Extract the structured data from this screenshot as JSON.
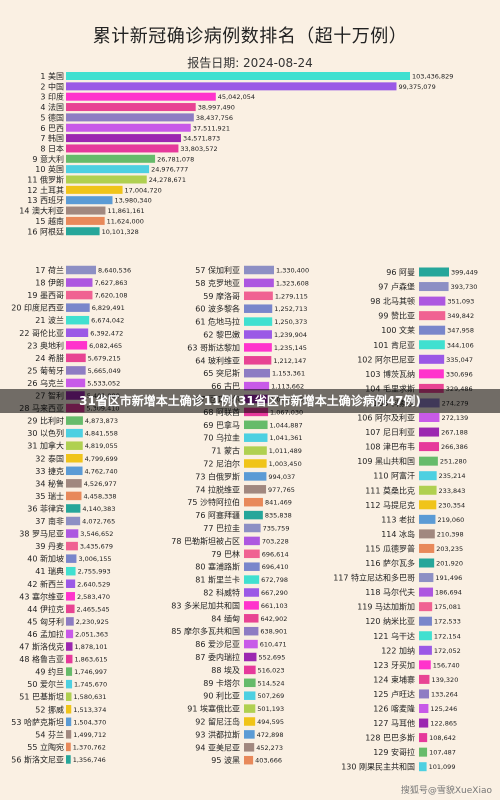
{
  "report_date_line": "报告日期:   2024-08-24",
  "overlay_banner": "31省区市新增本土确诊11例(31省区市新增本土确诊病例47例)",
  "watermark": "搜狐号@雪貌XueXiao",
  "chart_data": {
    "type": "bar",
    "title": "累计新冠确诊病例数排名（超十万例）",
    "orientation": "horizontal",
    "colors": [
      "#40e0d0",
      "#9b59e6",
      "#ff33cc",
      "#e84393",
      "#8e7cc3",
      "#c85ae8",
      "#9c27b0",
      "#e6399b",
      "#66bb6a",
      "#4dd0e1",
      "#b0d050",
      "#f0c419",
      "#5b9bd5",
      "#a1887f",
      "#e8895a",
      "#26a69a",
      "#8d8fc4",
      "#ad57e0",
      "#f06292",
      "#7986cb"
    ],
    "groups": [
      {
        "name": "top",
        "items": [
          {
            "rank": "1",
            "name": "美国",
            "value": 103436829,
            "label": "103,436,829"
          },
          {
            "rank": "2",
            "name": "中国",
            "value": 99375079,
            "label": "99,375,079"
          },
          {
            "rank": "3",
            "name": "印度",
            "value": 45042054,
            "label": "45,042,054"
          },
          {
            "rank": "4",
            "name": "法国",
            "value": 38997490,
            "label": "38,997,490"
          },
          {
            "rank": "5",
            "name": "德国",
            "value": 38437756,
            "label": "38,437,756"
          },
          {
            "rank": "6",
            "name": "巴西",
            "value": 37511921,
            "label": "37,511,921"
          },
          {
            "rank": "7",
            "name": "韩国",
            "value": 34571873,
            "label": "34,571,873"
          },
          {
            "rank": "8",
            "name": "日本",
            "value": 33803572,
            "label": "33,803,572"
          },
          {
            "rank": "9",
            "name": "意大利",
            "value": 26781078,
            "label": "26,781,078"
          },
          {
            "rank": "10",
            "name": "英国",
            "value": 24976777,
            "label": "24,976,777"
          },
          {
            "rank": "11",
            "name": "俄罗斯",
            "value": 24278671,
            "label": "24,278,671"
          },
          {
            "rank": "12",
            "name": "土耳其",
            "value": 17004720,
            "label": "17,004,720"
          },
          {
            "rank": "13",
            "name": "西班牙",
            "value": 13980340,
            "label": "13,980,340"
          },
          {
            "rank": "14",
            "name": "澳大利亚",
            "value": 11861161,
            "label": "11,861,161"
          },
          {
            "rank": "15",
            "name": "越南",
            "value": 11624000,
            "label": "11,624,000"
          },
          {
            "rank": "16",
            "name": "阿根廷",
            "value": 10101328,
            "label": "10,101,328"
          }
        ]
      },
      {
        "name": "col1",
        "items": [
          {
            "rank": "17",
            "name": "荷兰",
            "value": 8640536,
            "label": "8,640,536"
          },
          {
            "rank": "18",
            "name": "伊朗",
            "value": 7627863,
            "label": "7,627,863"
          },
          {
            "rank": "19",
            "name": "墨西哥",
            "value": 7620108,
            "label": "7,620,108"
          },
          {
            "rank": "20",
            "name": "印度尼西亚",
            "value": 6829491,
            "label": "6,829,491"
          },
          {
            "rank": "21",
            "name": "波兰",
            "value": 6674042,
            "label": "6,674,042"
          },
          {
            "rank": "22",
            "name": "哥伦比亚",
            "value": 6392472,
            "label": "6,392,472"
          },
          {
            "rank": "23",
            "name": "奥地利",
            "value": 6082465,
            "label": "6,082,465"
          },
          {
            "rank": "24",
            "name": "希腊",
            "value": 5679215,
            "label": "5,679,215"
          },
          {
            "rank": "25",
            "name": "葡萄牙",
            "value": 5665049,
            "label": "5,665,049"
          },
          {
            "rank": "26",
            "name": "乌克兰",
            "value": 5533052,
            "label": "5,533,052"
          },
          {
            "rank": "27",
            "name": "智利",
            "value": 5401080,
            "label": "5,401,080"
          },
          {
            "rank": "28",
            "name": "马来西亚",
            "value": 5309410,
            "label": "5,309,410"
          },
          {
            "rank": "29",
            "name": "比利时",
            "value": 4873873,
            "label": "4,873,873"
          },
          {
            "rank": "30",
            "name": "以色列",
            "value": 4841558,
            "label": "4,841,558"
          },
          {
            "rank": "31",
            "name": "加拿大",
            "value": 4819055,
            "label": "4,819,055"
          },
          {
            "rank": "32",
            "name": "泰国",
            "value": 4799699,
            "label": "4,799,699"
          },
          {
            "rank": "33",
            "name": "捷克",
            "value": 4762740,
            "label": "4,762,740"
          },
          {
            "rank": "34",
            "name": "秘鲁",
            "value": 4526977,
            "label": "4,526,977"
          },
          {
            "rank": "35",
            "name": "瑞士",
            "value": 4458338,
            "label": "4,458,338"
          },
          {
            "rank": "36",
            "name": "菲律宾",
            "value": 4140383,
            "label": "4,140,383"
          },
          {
            "rank": "37",
            "name": "南非",
            "value": 4072765,
            "label": "4,072,765"
          },
          {
            "rank": "38",
            "name": "罗马尼亚",
            "value": 3546652,
            "label": "3,546,652"
          },
          {
            "rank": "39",
            "name": "丹麦",
            "value": 3435679,
            "label": "3,435,679"
          },
          {
            "rank": "40",
            "name": "新加坡",
            "value": 3006155,
            "label": "3,006,155"
          },
          {
            "rank": "41",
            "name": "瑞典",
            "value": 2755993,
            "label": "2,755,993"
          },
          {
            "rank": "42",
            "name": "新西兰",
            "value": 2640529,
            "label": "2,640,529"
          },
          {
            "rank": "43",
            "name": "塞尔维亚",
            "value": 2583470,
            "label": "2,583,470"
          },
          {
            "rank": "44",
            "name": "伊拉克",
            "value": 2465545,
            "label": "2,465,545"
          },
          {
            "rank": "45",
            "name": "匈牙利",
            "value": 2230925,
            "label": "2,230,925"
          },
          {
            "rank": "46",
            "name": "孟加拉",
            "value": 2051363,
            "label": "2,051,363"
          },
          {
            "rank": "47",
            "name": "斯洛伐克",
            "value": 1878101,
            "label": "1,878,101"
          },
          {
            "rank": "48",
            "name": "格鲁吉亚",
            "value": 1863615,
            "label": "1,863,615"
          },
          {
            "rank": "49",
            "name": "约旦",
            "value": 1746997,
            "label": "1,746,997"
          },
          {
            "rank": "50",
            "name": "爱尔兰",
            "value": 1745670,
            "label": "1,745,670"
          },
          {
            "rank": "51",
            "name": "巴基斯坦",
            "value": 1580631,
            "label": "1,580,631"
          },
          {
            "rank": "52",
            "name": "挪威",
            "value": 1513374,
            "label": "1,513,374"
          },
          {
            "rank": "53",
            "name": "哈萨克斯坦",
            "value": 1504370,
            "label": "1,504,370"
          },
          {
            "rank": "54",
            "name": "芬兰",
            "value": 1499712,
            "label": "1,499,712"
          },
          {
            "rank": "55",
            "name": "立陶宛",
            "value": 1370762,
            "label": "1,370,762"
          },
          {
            "rank": "56",
            "name": "斯洛文尼亚",
            "value": 1356746,
            "label": "1,356,746"
          }
        ]
      },
      {
        "name": "col2",
        "items": [
          {
            "rank": "57",
            "name": "保加利亚",
            "value": 1330400,
            "label": "1,330,400"
          },
          {
            "rank": "58",
            "name": "克罗地亚",
            "value": 1323608,
            "label": "1,323,608"
          },
          {
            "rank": "59",
            "name": "摩洛哥",
            "value": 1279115,
            "label": "1,279,115"
          },
          {
            "rank": "60",
            "name": "波多黎各",
            "value": 1252713,
            "label": "1,252,713"
          },
          {
            "rank": "61",
            "name": "危地马拉",
            "value": 1250373,
            "label": "1,250,373"
          },
          {
            "rank": "62",
            "name": "黎巴嫩",
            "value": 1239904,
            "label": "1,239,904"
          },
          {
            "rank": "63",
            "name": "哥斯达黎加",
            "value": 1235145,
            "label": "1,235,145"
          },
          {
            "rank": "64",
            "name": "玻利维亚",
            "value": 1212147,
            "label": "1,212,147"
          },
          {
            "rank": "65",
            "name": "突尼斯",
            "value": 1153361,
            "label": "1,153,361"
          },
          {
            "rank": "66",
            "name": "古巴",
            "value": 1113662,
            "label": "1,113,662"
          },
          {
            "rank": "67",
            "name": "厄瓜多尔",
            "value": 1077346,
            "label": "1,077,346"
          },
          {
            "rank": "68",
            "name": "阿联酋",
            "value": 1067030,
            "label": "1,067,030"
          },
          {
            "rank": "69",
            "name": "巴拿马",
            "value": 1044887,
            "label": "1,044,887"
          },
          {
            "rank": "70",
            "name": "乌拉圭",
            "value": 1041361,
            "label": "1,041,361"
          },
          {
            "rank": "71",
            "name": "蒙古",
            "value": 1011489,
            "label": "1,011,489"
          },
          {
            "rank": "72",
            "name": "尼泊尔",
            "value": 1003450,
            "label": "1,003,450"
          },
          {
            "rank": "73",
            "name": "白俄罗斯",
            "value": 994037,
            "label": "994,037"
          },
          {
            "rank": "74",
            "name": "拉脱维亚",
            "value": 977765,
            "label": "977,765"
          },
          {
            "rank": "75",
            "name": "沙特阿拉伯",
            "value": 841469,
            "label": "841,469"
          },
          {
            "rank": "76",
            "name": "阿塞拜疆",
            "value": 835838,
            "label": "835,838"
          },
          {
            "rank": "77",
            "name": "巴拉圭",
            "value": 735759,
            "label": "735,759"
          },
          {
            "rank": "78",
            "name": "巴勒斯坦被占区",
            "value": 703228,
            "label": "703,228"
          },
          {
            "rank": "79",
            "name": "巴林",
            "value": 696614,
            "label": "696,614"
          },
          {
            "rank": "80",
            "name": "塞浦路斯",
            "value": 696410,
            "label": "696,410"
          },
          {
            "rank": "81",
            "name": "斯里兰卡",
            "value": 672798,
            "label": "672,798"
          },
          {
            "rank": "82",
            "name": "科威特",
            "value": 667290,
            "label": "667,290"
          },
          {
            "rank": "83",
            "name": "多米尼加共和国",
            "value": 661103,
            "label": "661,103"
          },
          {
            "rank": "84",
            "name": "缅甸",
            "value": 642902,
            "label": "642,902"
          },
          {
            "rank": "85",
            "name": "摩尔多瓦共和国",
            "value": 638901,
            "label": "638,901"
          },
          {
            "rank": "86",
            "name": "爱沙尼亚",
            "value": 610471,
            "label": "610,471"
          },
          {
            "rank": "87",
            "name": "委内瑞拉",
            "value": 552695,
            "label": "552,695"
          },
          {
            "rank": "88",
            "name": "埃及",
            "value": 516023,
            "label": "516,023"
          },
          {
            "rank": "89",
            "name": "卡塔尔",
            "value": 514524,
            "label": "514,524"
          },
          {
            "rank": "90",
            "name": "利比亚",
            "value": 507269,
            "label": "507,269"
          },
          {
            "rank": "91",
            "name": "埃塞俄比亚",
            "value": 501193,
            "label": "501,193"
          },
          {
            "rank": "92",
            "name": "留尼汪岛",
            "value": 494595,
            "label": "494,595"
          },
          {
            "rank": "93",
            "name": "洪都拉斯",
            "value": 472898,
            "label": "472,898"
          },
          {
            "rank": "94",
            "name": "亚美尼亚",
            "value": 452273,
            "label": "452,273"
          },
          {
            "rank": "95",
            "name": "波黑",
            "value": 403666,
            "label": "403,666"
          }
        ]
      },
      {
        "name": "col3",
        "items": [
          {
            "rank": "96",
            "name": "阿曼",
            "value": 399449,
            "label": "399,449"
          },
          {
            "rank": "97",
            "name": "卢森堡",
            "value": 393730,
            "label": "393,730"
          },
          {
            "rank": "98",
            "name": "北马其顿",
            "value": 351093,
            "label": "351,093"
          },
          {
            "rank": "99",
            "name": "赞比亚",
            "value": 349842,
            "label": "349,842"
          },
          {
            "rank": "100",
            "name": "文莱",
            "value": 347958,
            "label": "347,958"
          },
          {
            "rank": "101",
            "name": "肯尼亚",
            "value": 344106,
            "label": "344,106"
          },
          {
            "rank": "102",
            "name": "阿尔巴尼亚",
            "value": 335047,
            "label": "335,047"
          },
          {
            "rank": "103",
            "name": "博茨瓦纳",
            "value": 330696,
            "label": "330,696"
          },
          {
            "rank": "104",
            "name": "毛里求斯",
            "value": 329486,
            "label": "329,486"
          },
          {
            "rank": "105",
            "name": "科索沃",
            "value": 274279,
            "label": "274,279"
          },
          {
            "rank": "106",
            "name": "阿尔及利亚",
            "value": 272139,
            "label": "272,139"
          },
          {
            "rank": "107",
            "name": "尼日利亚",
            "value": 267188,
            "label": "267,188"
          },
          {
            "rank": "108",
            "name": "津巴布韦",
            "value": 266386,
            "label": "266,386"
          },
          {
            "rank": "109",
            "name": "黑山共和国",
            "value": 251280,
            "label": "251,280"
          },
          {
            "rank": "110",
            "name": "阿富汗",
            "value": 235214,
            "label": "235,214"
          },
          {
            "rank": "111",
            "name": "莫桑比克",
            "value": 233843,
            "label": "233,843"
          },
          {
            "rank": "112",
            "name": "马提尼克",
            "value": 230354,
            "label": "230,354"
          },
          {
            "rank": "113",
            "name": "老挝",
            "value": 219060,
            "label": "219,060"
          },
          {
            "rank": "114",
            "name": "冰岛",
            "value": 210398,
            "label": "210,398"
          },
          {
            "rank": "115",
            "name": "瓜德罗普",
            "value": 203235,
            "label": "203,235"
          },
          {
            "rank": "116",
            "name": "萨尔瓦多",
            "value": 201920,
            "label": "201,920"
          },
          {
            "rank": "117",
            "name": "特立尼达和多巴哥",
            "value": 191496,
            "label": "191,496"
          },
          {
            "rank": "118",
            "name": "马尔代夫",
            "value": 186694,
            "label": "186,694"
          },
          {
            "rank": "119",
            "name": "马达加斯加",
            "value": 175081,
            "label": "175,081"
          },
          {
            "rank": "120",
            "name": "纳米比亚",
            "value": 172533,
            "label": "172,533"
          },
          {
            "rank": "121",
            "name": "乌干达",
            "value": 172154,
            "label": "172,154"
          },
          {
            "rank": "122",
            "name": "加纳",
            "value": 172052,
            "label": "172,052"
          },
          {
            "rank": "123",
            "name": "牙买加",
            "value": 156740,
            "label": "156,740"
          },
          {
            "rank": "124",
            "name": "柬埔寨",
            "value": 139320,
            "label": "139,320"
          },
          {
            "rank": "125",
            "name": "卢旺达",
            "value": 133264,
            "label": "133,264"
          },
          {
            "rank": "126",
            "name": "喀麦隆",
            "value": 125246,
            "label": "125,246"
          },
          {
            "rank": "127",
            "name": "马耳他",
            "value": 122865,
            "label": "122,865"
          },
          {
            "rank": "128",
            "name": "巴巴多斯",
            "value": 108642,
            "label": "108,642"
          },
          {
            "rank": "129",
            "name": "安哥拉",
            "value": 107487,
            "label": "107,487"
          },
          {
            "rank": "130",
            "name": "刚果民主共和国",
            "value": 101099,
            "label": "101,099"
          }
        ]
      }
    ]
  }
}
